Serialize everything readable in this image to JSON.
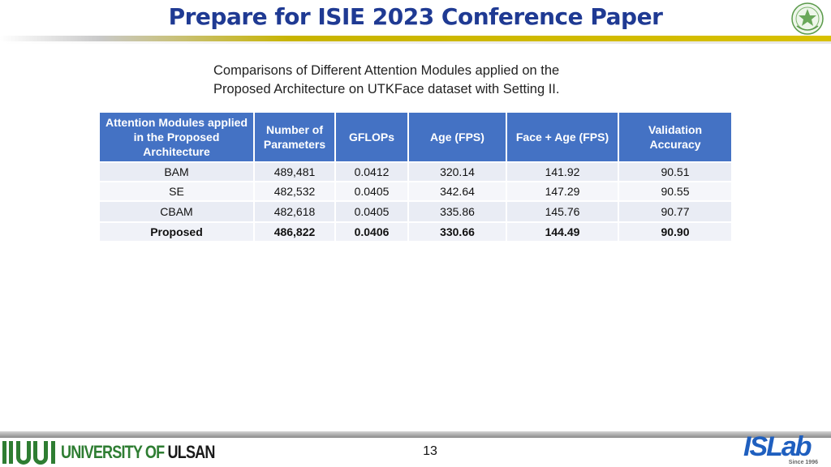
{
  "slide": {
    "title": "Prepare for ISIE 2023 Conference Paper",
    "caption_line1": "Comparisons of Different Attention Modules applied on the",
    "caption_line2": "Proposed Architecture on UTKFace dataset with Setting II.",
    "page_number": "13"
  },
  "table": {
    "headers": [
      "Attention Modules applied in the Proposed Architecture",
      "Number of Parameters",
      "GFLOPs",
      "Age (FPS)",
      "Face + Age (FPS)",
      "Validation Accuracy"
    ],
    "rows": [
      [
        "BAM",
        "489,481",
        "0.0412",
        "320.14",
        "141.92",
        "90.51"
      ],
      [
        "SE",
        "482,532",
        "0.0405",
        "342.64",
        "147.29",
        "90.55"
      ],
      [
        "CBAM",
        "482,618",
        "0.0405",
        "335.86",
        "145.76",
        "90.77"
      ],
      [
        "Proposed",
        "486,822",
        "0.0406",
        "330.66",
        "144.49",
        "90.90"
      ]
    ]
  },
  "footer": {
    "university_word1": "UNIVERSITY OF",
    "university_word2": "ULSAN",
    "lab_logo_is": "IS",
    "lab_logo_lab": "Lab",
    "lab_logo_sub": "Since 1996"
  },
  "icons": {
    "seal": "university-seal-icon",
    "university_bars": "university-logo-bars-icon"
  },
  "colors": {
    "title": "#1f3a93",
    "table_header": "#4472c4",
    "accent_bar": "#c8b400",
    "university_green": "#2e7d32",
    "lab_blue": "#1f5fbf"
  }
}
